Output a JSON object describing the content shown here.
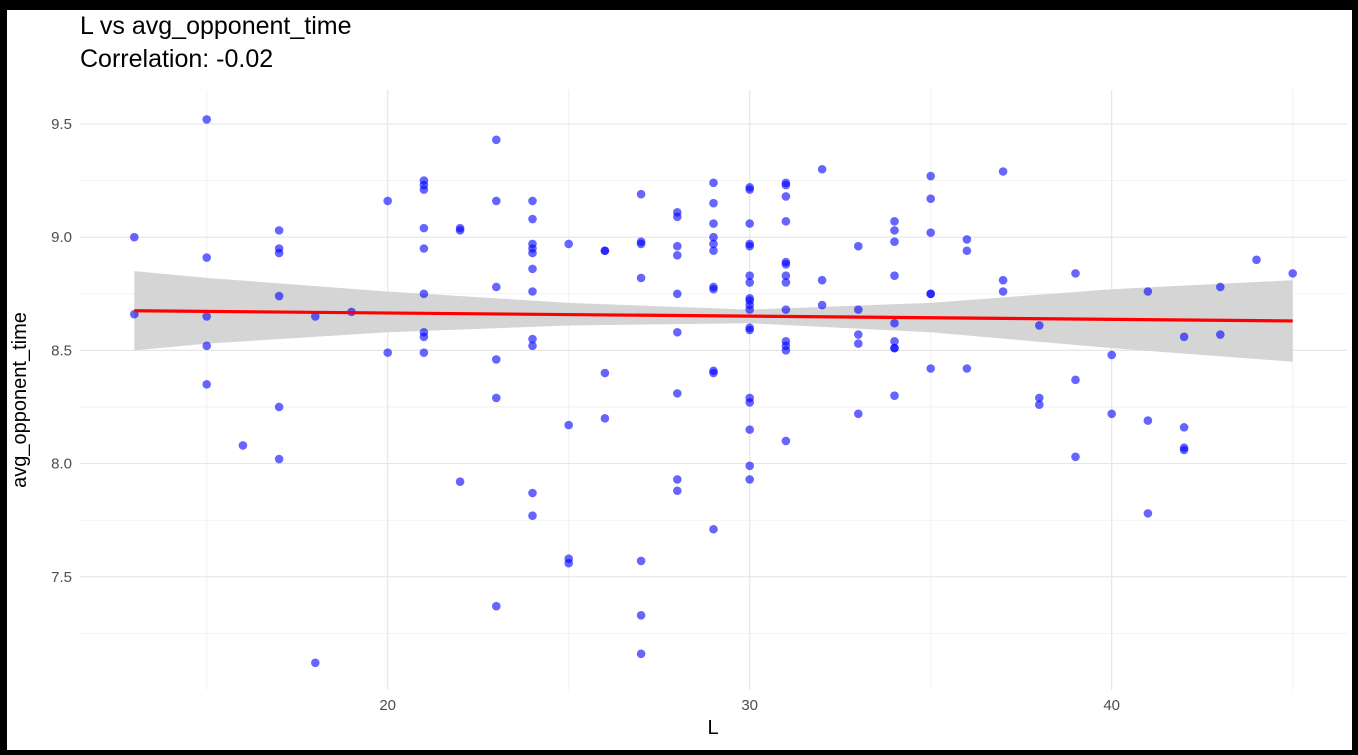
{
  "chart_data": {
    "type": "scatter",
    "title": "L vs avg_opponent_time",
    "subtitle": "Correlation: -0.02",
    "xlabel": "L",
    "ylabel": "avg_opponent_time",
    "xlim": [
      11.5,
      46.5
    ],
    "ylim": [
      7.0,
      9.65
    ],
    "x_ticks": [
      20,
      30,
      40
    ],
    "x_tick_labels": [
      "20",
      "30",
      "40"
    ],
    "y_ticks": [
      7.5,
      8.0,
      8.5,
      9.0,
      9.5
    ],
    "y_tick_labels": [
      "7.5",
      "8.0",
      "8.5",
      "9.0",
      "9.5"
    ],
    "grid": true,
    "legend": "none",
    "point_color": "#0000ff",
    "point_opacity": 0.6,
    "line_color": "#ff0000",
    "band_color": "#d3d3d3",
    "points": [
      [
        13,
        9.0
      ],
      [
        13,
        8.66
      ],
      [
        15,
        9.52
      ],
      [
        15,
        8.91
      ],
      [
        15,
        8.65
      ],
      [
        15,
        8.52
      ],
      [
        15,
        8.35
      ],
      [
        16,
        8.08
      ],
      [
        17,
        9.03
      ],
      [
        17,
        8.95
      ],
      [
        17,
        8.93
      ],
      [
        17,
        8.74
      ],
      [
        17,
        8.25
      ],
      [
        17,
        8.02
      ],
      [
        18,
        8.65
      ],
      [
        18,
        7.12
      ],
      [
        19,
        8.67
      ],
      [
        20,
        9.16
      ],
      [
        20,
        8.49
      ],
      [
        21,
        9.25
      ],
      [
        21,
        9.23
      ],
      [
        21,
        9.21
      ],
      [
        21,
        9.04
      ],
      [
        21,
        8.95
      ],
      [
        21,
        8.75
      ],
      [
        21,
        8.58
      ],
      [
        21,
        8.56
      ],
      [
        21,
        8.49
      ],
      [
        22,
        9.04
      ],
      [
        22,
        9.03
      ],
      [
        22,
        7.92
      ],
      [
        23,
        9.43
      ],
      [
        23,
        9.16
      ],
      [
        23,
        8.78
      ],
      [
        23,
        8.46
      ],
      [
        23,
        8.29
      ],
      [
        23,
        7.37
      ],
      [
        24,
        9.16
      ],
      [
        24,
        9.08
      ],
      [
        24,
        8.97
      ],
      [
        24,
        8.95
      ],
      [
        24,
        8.93
      ],
      [
        24,
        8.86
      ],
      [
        24,
        8.76
      ],
      [
        24,
        8.55
      ],
      [
        24,
        8.52
      ],
      [
        24,
        7.87
      ],
      [
        24,
        7.77
      ],
      [
        25,
        8.97
      ],
      [
        25,
        8.17
      ],
      [
        25,
        7.58
      ],
      [
        25,
        7.56
      ],
      [
        26,
        8.94
      ],
      [
        26,
        8.94
      ],
      [
        26,
        8.4
      ],
      [
        26,
        8.2
      ],
      [
        27,
        9.19
      ],
      [
        27,
        8.98
      ],
      [
        27,
        8.97
      ],
      [
        27,
        8.82
      ],
      [
        27,
        7.57
      ],
      [
        27,
        7.33
      ],
      [
        27,
        7.16
      ],
      [
        28,
        9.11
      ],
      [
        28,
        9.09
      ],
      [
        28,
        8.96
      ],
      [
        28,
        8.92
      ],
      [
        28,
        8.75
      ],
      [
        28,
        8.58
      ],
      [
        28,
        8.31
      ],
      [
        28,
        7.93
      ],
      [
        28,
        7.88
      ],
      [
        29,
        9.24
      ],
      [
        29,
        9.15
      ],
      [
        29,
        9.06
      ],
      [
        29,
        9.0
      ],
      [
        29,
        8.97
      ],
      [
        29,
        8.94
      ],
      [
        29,
        8.78
      ],
      [
        29,
        8.77
      ],
      [
        29,
        8.41
      ],
      [
        29,
        8.4
      ],
      [
        29,
        7.71
      ],
      [
        30,
        9.22
      ],
      [
        30,
        9.21
      ],
      [
        30,
        9.06
      ],
      [
        30,
        8.97
      ],
      [
        30,
        8.96
      ],
      [
        30,
        8.83
      ],
      [
        30,
        8.8
      ],
      [
        30,
        8.73
      ],
      [
        30,
        8.72
      ],
      [
        30,
        8.7
      ],
      [
        30,
        8.68
      ],
      [
        30,
        8.6
      ],
      [
        30,
        8.59
      ],
      [
        30,
        8.29
      ],
      [
        30,
        8.27
      ],
      [
        30,
        8.15
      ],
      [
        30,
        7.99
      ],
      [
        30,
        7.93
      ],
      [
        31,
        9.24
      ],
      [
        31,
        9.23
      ],
      [
        31,
        9.18
      ],
      [
        31,
        9.07
      ],
      [
        31,
        8.89
      ],
      [
        31,
        8.88
      ],
      [
        31,
        8.83
      ],
      [
        31,
        8.8
      ],
      [
        31,
        8.68
      ],
      [
        31,
        8.54
      ],
      [
        31,
        8.52
      ],
      [
        31,
        8.5
      ],
      [
        31,
        8.1
      ],
      [
        32,
        9.3
      ],
      [
        32,
        8.81
      ],
      [
        32,
        8.7
      ],
      [
        33,
        8.96
      ],
      [
        33,
        8.68
      ],
      [
        33,
        8.57
      ],
      [
        33,
        8.53
      ],
      [
        33,
        8.22
      ],
      [
        34,
        9.07
      ],
      [
        34,
        9.03
      ],
      [
        34,
        8.98
      ],
      [
        34,
        8.83
      ],
      [
        34,
        8.62
      ],
      [
        34,
        8.54
      ],
      [
        34,
        8.51
      ],
      [
        34,
        8.51
      ],
      [
        34,
        8.3
      ],
      [
        35,
        9.27
      ],
      [
        35,
        9.17
      ],
      [
        35,
        9.02
      ],
      [
        35,
        8.75
      ],
      [
        35,
        8.75
      ],
      [
        35,
        8.42
      ],
      [
        36,
        8.99
      ],
      [
        36,
        8.94
      ],
      [
        36,
        8.42
      ],
      [
        37,
        9.29
      ],
      [
        37,
        8.81
      ],
      [
        37,
        8.76
      ],
      [
        38,
        8.61
      ],
      [
        38,
        8.29
      ],
      [
        38,
        8.26
      ],
      [
        39,
        8.84
      ],
      [
        39,
        8.37
      ],
      [
        39,
        8.03
      ],
      [
        40,
        8.48
      ],
      [
        40,
        8.22
      ],
      [
        41,
        8.76
      ],
      [
        41,
        8.19
      ],
      [
        41,
        7.78
      ],
      [
        42,
        8.56
      ],
      [
        42,
        8.16
      ],
      [
        42,
        8.07
      ],
      [
        42,
        8.06
      ],
      [
        43,
        8.78
      ],
      [
        43,
        8.57
      ],
      [
        44,
        8.9
      ],
      [
        45,
        8.84
      ]
    ],
    "regression": {
      "x": [
        13,
        45
      ],
      "y": [
        8.675,
        8.63
      ]
    },
    "confidence_band": {
      "x": [
        13,
        15,
        20,
        25,
        30,
        35,
        40,
        45
      ],
      "upper": [
        8.85,
        8.82,
        8.76,
        8.71,
        8.68,
        8.71,
        8.77,
        8.81
      ],
      "lower": [
        8.5,
        8.53,
        8.58,
        8.61,
        8.62,
        8.58,
        8.51,
        8.45
      ]
    }
  }
}
